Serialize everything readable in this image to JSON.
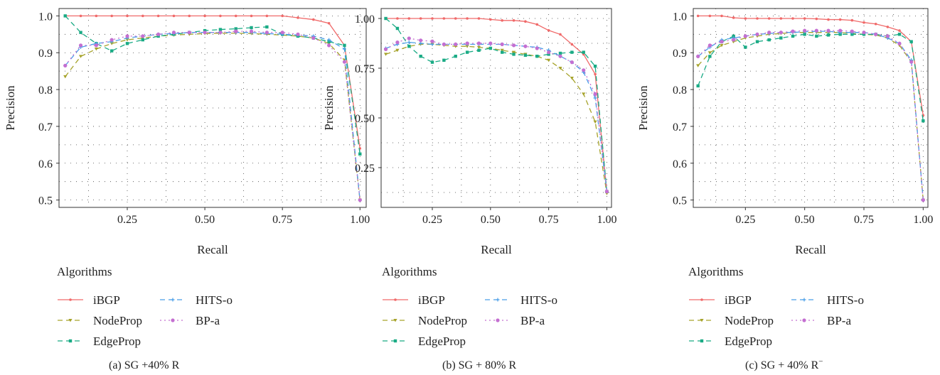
{
  "legend": {
    "title": "Algorithms",
    "entries": [
      {
        "name": "iBGP",
        "color": "#f06a6a",
        "dash": "solid",
        "marker": "circle"
      },
      {
        "name": "NodeProp",
        "color": "#a6a32b",
        "dash": "dashed",
        "marker": "tri"
      },
      {
        "name": "EdgeProp",
        "color": "#1aab85",
        "dash": "dashed",
        "marker": "square"
      },
      {
        "name": "HITS-o",
        "color": "#4a9ee8",
        "dash": "dashed",
        "marker": "plus"
      },
      {
        "name": "BP-a",
        "color": "#c46fd1",
        "dash": "dotted",
        "marker": "circle"
      }
    ]
  },
  "chart_data": [
    {
      "type": "line",
      "caption": "(a) SG +40% R",
      "xlabel": "Recall",
      "ylabel": "Precision",
      "xlim": [
        0.03,
        1.02
      ],
      "ylim": [
        0.48,
        1.02
      ],
      "xticks": [
        0.25,
        0.5,
        0.75,
        1.0
      ],
      "xtick_labels": [
        "0.25",
        "0.50",
        "0.75",
        "1.00"
      ],
      "yticks": [
        0.5,
        0.6,
        0.7,
        0.8,
        0.9,
        1.0
      ],
      "ytick_labels": [
        "0.5",
        "0.6",
        "0.7",
        "0.8",
        "0.9",
        "1.0"
      ],
      "grid": "dotted",
      "x": [
        0.05,
        0.1,
        0.15,
        0.2,
        0.25,
        0.3,
        0.35,
        0.4,
        0.45,
        0.5,
        0.55,
        0.6,
        0.65,
        0.7,
        0.75,
        0.8,
        0.85,
        0.9,
        0.95,
        1.0
      ],
      "series": [
        {
          "name": "iBGP",
          "values": [
            1.0,
            1.0,
            1.0,
            1.0,
            1.0,
            1.0,
            1.0,
            1.0,
            1.0,
            1.0,
            1.0,
            1.0,
            1.0,
            1.0,
            1.0,
            0.995,
            0.99,
            0.98,
            0.92,
            0.64
          ]
        },
        {
          "name": "NodeProp",
          "values": [
            0.835,
            0.89,
            0.91,
            0.925,
            0.935,
            0.94,
            0.945,
            0.948,
            0.95,
            0.952,
            0.953,
            0.953,
            0.952,
            0.95,
            0.948,
            0.945,
            0.94,
            0.925,
            0.88,
            0.5
          ]
        },
        {
          "name": "EdgeProp",
          "values": [
            1.0,
            0.955,
            0.925,
            0.905,
            0.925,
            0.935,
            0.945,
            0.95,
            0.955,
            0.96,
            0.963,
            0.965,
            0.968,
            0.97,
            0.95,
            0.945,
            0.94,
            0.93,
            0.92,
            0.625
          ]
        },
        {
          "name": "HITS-o",
          "values": [
            0.865,
            0.915,
            0.925,
            0.93,
            0.94,
            0.945,
            0.95,
            0.952,
            0.955,
            0.955,
            0.955,
            0.955,
            0.955,
            0.952,
            0.95,
            0.948,
            0.945,
            0.935,
            0.91,
            0.5
          ]
        },
        {
          "name": "BP-a",
          "values": [
            0.865,
            0.92,
            0.92,
            0.935,
            0.945,
            0.945,
            0.95,
            0.955,
            0.955,
            0.955,
            0.955,
            0.958,
            0.958,
            0.955,
            0.955,
            0.95,
            0.94,
            0.92,
            0.875,
            0.5
          ]
        }
      ]
    },
    {
      "type": "line",
      "caption": "(b) SG + 80% R",
      "xlabel": "Recall",
      "ylabel": "Precision",
      "xlim": [
        0.03,
        1.02
      ],
      "ylim": [
        0.05,
        1.05
      ],
      "xticks": [
        0.25,
        0.5,
        0.75,
        1.0
      ],
      "xtick_labels": [
        "0.25",
        "0.50",
        "0.75",
        "1.00"
      ],
      "yticks": [
        0.25,
        0.5,
        0.75,
        1.0
      ],
      "ytick_labels": [
        "0.25",
        "0.50",
        "0.75",
        "1.00"
      ],
      "grid": "dotted",
      "x": [
        0.05,
        0.1,
        0.15,
        0.2,
        0.25,
        0.3,
        0.35,
        0.4,
        0.45,
        0.5,
        0.55,
        0.6,
        0.65,
        0.7,
        0.75,
        0.8,
        0.85,
        0.9,
        0.95,
        1.0
      ],
      "series": [
        {
          "name": "iBGP",
          "values": [
            1.0,
            1.0,
            1.0,
            1.0,
            1.0,
            1.0,
            1.0,
            1.0,
            1.0,
            0.995,
            0.99,
            0.99,
            0.985,
            0.97,
            0.94,
            0.92,
            0.87,
            0.82,
            0.72,
            0.13
          ]
        },
        {
          "name": "NodeProp",
          "values": [
            0.82,
            0.84,
            0.86,
            0.87,
            0.87,
            0.865,
            0.86,
            0.86,
            0.855,
            0.85,
            0.84,
            0.83,
            0.82,
            0.81,
            0.79,
            0.75,
            0.7,
            0.62,
            0.48,
            0.12
          ]
        },
        {
          "name": "EdgeProp",
          "values": [
            1.0,
            0.95,
            0.86,
            0.81,
            0.78,
            0.79,
            0.81,
            0.83,
            0.84,
            0.85,
            0.83,
            0.82,
            0.815,
            0.81,
            0.82,
            0.825,
            0.83,
            0.83,
            0.76,
            0.13
          ]
        },
        {
          "name": "HITS-o",
          "values": [
            0.85,
            0.87,
            0.88,
            0.875,
            0.87,
            0.87,
            0.87,
            0.87,
            0.87,
            0.87,
            0.87,
            0.865,
            0.86,
            0.855,
            0.84,
            0.81,
            0.78,
            0.73,
            0.6,
            0.13
          ]
        },
        {
          "name": "BP-a",
          "values": [
            0.845,
            0.88,
            0.9,
            0.89,
            0.885,
            0.87,
            0.87,
            0.875,
            0.875,
            0.875,
            0.87,
            0.865,
            0.86,
            0.85,
            0.83,
            0.81,
            0.78,
            0.74,
            0.62,
            0.13
          ]
        }
      ]
    },
    {
      "type": "line",
      "caption": "(c) SG + 40% R",
      "caption_sup": "−",
      "xlabel": "Recall",
      "ylabel": "Precision",
      "xlim": [
        0.03,
        1.02
      ],
      "ylim": [
        0.48,
        1.02
      ],
      "xticks": [
        0.25,
        0.5,
        0.75,
        1.0
      ],
      "xtick_labels": [
        "0.25",
        "0.50",
        "0.75",
        "1.00"
      ],
      "yticks": [
        0.5,
        0.6,
        0.7,
        0.8,
        0.9,
        1.0
      ],
      "ytick_labels": [
        "0.5",
        "0.6",
        "0.7",
        "0.8",
        "0.9",
        "1.0"
      ],
      "grid": "dotted",
      "x": [
        0.05,
        0.1,
        0.15,
        0.2,
        0.25,
        0.3,
        0.35,
        0.4,
        0.45,
        0.5,
        0.55,
        0.6,
        0.65,
        0.7,
        0.75,
        0.8,
        0.85,
        0.9,
        0.95,
        1.0
      ],
      "series": [
        {
          "name": "iBGP",
          "values": [
            1.0,
            1.0,
            1.0,
            0.995,
            0.993,
            0.993,
            0.993,
            0.993,
            0.993,
            0.993,
            0.992,
            0.99,
            0.99,
            0.988,
            0.982,
            0.978,
            0.97,
            0.96,
            0.93,
            0.73
          ]
        },
        {
          "name": "NodeProp",
          "values": [
            0.865,
            0.9,
            0.92,
            0.93,
            0.94,
            0.945,
            0.95,
            0.952,
            0.955,
            0.955,
            0.955,
            0.955,
            0.955,
            0.952,
            0.95,
            0.948,
            0.94,
            0.92,
            0.875,
            0.5
          ]
        },
        {
          "name": "EdgeProp",
          "values": [
            0.81,
            0.89,
            0.93,
            0.945,
            0.915,
            0.93,
            0.935,
            0.94,
            0.945,
            0.95,
            0.945,
            0.948,
            0.95,
            0.95,
            0.95,
            0.95,
            0.945,
            0.95,
            0.93,
            0.715
          ]
        },
        {
          "name": "HITS-o",
          "values": [
            0.89,
            0.915,
            0.935,
            0.94,
            0.945,
            0.95,
            0.952,
            0.955,
            0.955,
            0.957,
            0.958,
            0.958,
            0.955,
            0.955,
            0.955,
            0.95,
            0.94,
            0.925,
            0.88,
            0.5
          ]
        },
        {
          "name": "BP-a",
          "values": [
            0.89,
            0.92,
            0.93,
            0.935,
            0.945,
            0.95,
            0.955,
            0.955,
            0.958,
            0.96,
            0.96,
            0.96,
            0.96,
            0.958,
            0.955,
            0.95,
            0.945,
            0.925,
            0.875,
            0.5
          ]
        }
      ]
    }
  ]
}
